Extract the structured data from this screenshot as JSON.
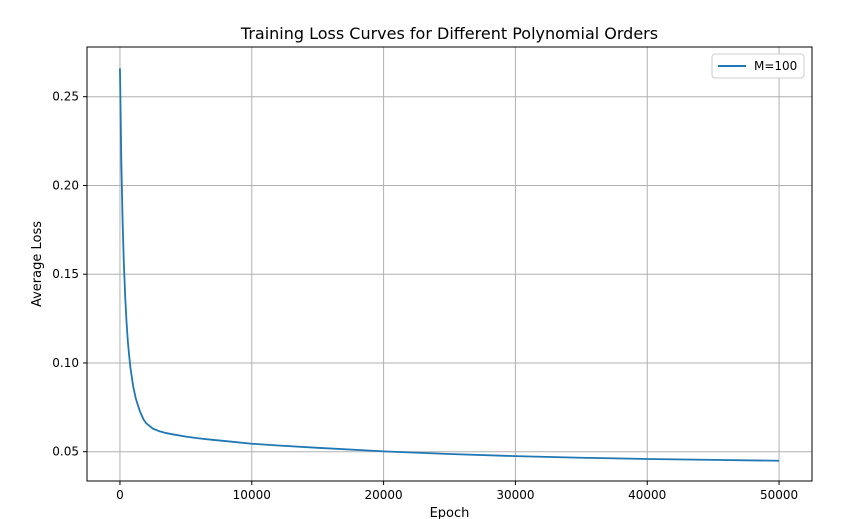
{
  "chart_data": {
    "type": "line",
    "title": "Training Loss Curves for Different Polynomial Orders",
    "xlabel": "Epoch",
    "ylabel": "Average Loss",
    "xlim": [
      -2500,
      52500
    ],
    "ylim": [
      0.0335,
      0.278
    ],
    "xticks": [
      0,
      10000,
      20000,
      30000,
      40000,
      50000
    ],
    "yticks": [
      0.05,
      0.1,
      0.15,
      0.2,
      0.25
    ],
    "xtick_labels": [
      "0",
      "10000",
      "20000",
      "30000",
      "40000",
      "50000"
    ],
    "ytick_labels": [
      "0.05",
      "0.10",
      "0.15",
      "0.20",
      "0.25"
    ],
    "grid": true,
    "legend_position": "top-right",
    "series": [
      {
        "name": "M=100",
        "color": "#1f77b4",
        "x": [
          0,
          100,
          200,
          300,
          400,
          500,
          600,
          700,
          800,
          1000,
          1200,
          1500,
          1800,
          2000,
          2500,
          3000,
          3500,
          4000,
          5000,
          6000,
          7000,
          8000,
          10000,
          12000,
          15000,
          20000,
          25000,
          30000,
          35000,
          40000,
          45000,
          50000
        ],
        "y": [
          0.266,
          0.215,
          0.18,
          0.155,
          0.137,
          0.123,
          0.112,
          0.104,
          0.097,
          0.087,
          0.08,
          0.073,
          0.068,
          0.066,
          0.063,
          0.0615,
          0.0605,
          0.0598,
          0.0585,
          0.0575,
          0.0567,
          0.056,
          0.0545,
          0.0535,
          0.0522,
          0.0502,
          0.0487,
          0.0475,
          0.0466,
          0.0459,
          0.0454,
          0.0449
        ]
      }
    ]
  }
}
